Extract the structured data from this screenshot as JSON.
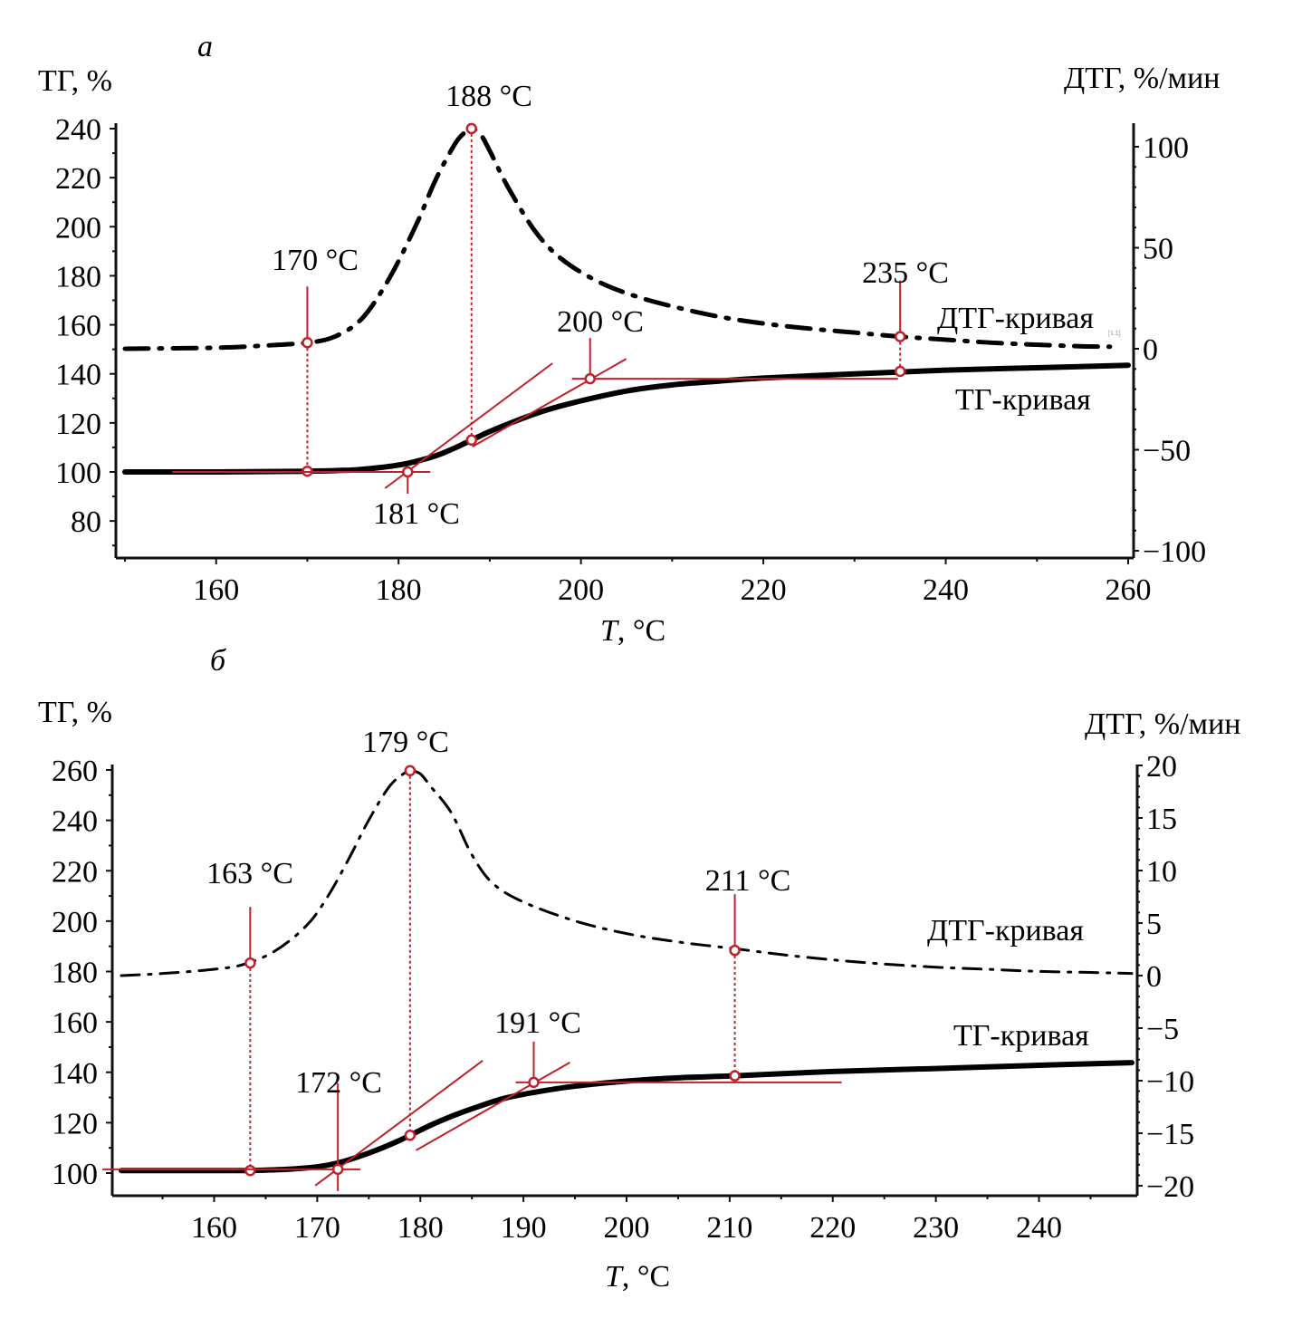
{
  "chart_data": [
    {
      "type": "line",
      "panel_label": "а",
      "ylabel_left": "ТГ, %",
      "ylabel_right": "ДТГ, %/мин",
      "xlabel_italic": "T",
      "xlabel_rest": ", °C",
      "xlim": [
        150,
        260
      ],
      "ylim_left": [
        70,
        242
      ],
      "ylim_right": [
        -100,
        122
      ],
      "xticks": [
        160,
        180,
        200,
        220,
        240,
        260
      ],
      "yticks_left": [
        80,
        100,
        120,
        140,
        160,
        180,
        200,
        220,
        240
      ],
      "yticks_right": [
        -100,
        -50,
        0,
        50,
        100
      ],
      "grid": false,
      "series": [
        {
          "name": "ДТГ-кривая",
          "axis": "right",
          "style": "dash-dot",
          "x": [
            150,
            160,
            165,
            170,
            173,
            176,
            179,
            182,
            184,
            186,
            187,
            188,
            189,
            190,
            192,
            195,
            198,
            202,
            206,
            210,
            215,
            220,
            225,
            230,
            235,
            240,
            245,
            250,
            255,
            258
          ],
          "y": [
            0,
            0.5,
            1.5,
            3,
            6,
            15,
            35,
            62,
            83,
            100,
            106,
            109,
            106,
            98,
            80,
            58,
            44,
            33,
            26,
            21,
            16,
            12.5,
            10,
            8,
            6,
            4.5,
            3,
            2,
            1.2,
            1
          ]
        },
        {
          "name": "ТГ-кривая",
          "axis": "left",
          "style": "solid",
          "x": [
            150,
            160,
            170,
            175,
            178,
            181,
            184,
            186,
            188,
            190,
            193,
            196,
            200,
            205,
            210,
            215,
            220,
            230,
            240,
            250,
            260
          ],
          "y": [
            100,
            100,
            100.3,
            100.8,
            101.8,
            103.5,
            106.5,
            109.5,
            113,
            116.5,
            121,
            125,
            129,
            133,
            135.5,
            137,
            138.3,
            140,
            141.5,
            142.5,
            143.5
          ]
        }
      ],
      "annotations": [
        {
          "label": "170 °C",
          "x": 170,
          "curve": "ДТГ-кривая",
          "y_dtg": 3,
          "tg_y": 100.3,
          "type": "onset"
        },
        {
          "label": "181 °C",
          "x": 181,
          "curve": "ТГ-кривая",
          "y_tg": 100,
          "type": "tangent-intersection"
        },
        {
          "label": "188 °C",
          "x": 188,
          "curve": "ДТГ-кривая",
          "y_dtg": 109,
          "tg_y": 113,
          "type": "peak"
        },
        {
          "label": "200 °C",
          "x": 201,
          "curve": "ТГ-кривая",
          "y_tg": 138,
          "type": "tangent-intersection"
        },
        {
          "label": "235 °C",
          "x": 235,
          "curve": "ДТГ-кривая",
          "y_dtg": 6,
          "tg_y": 141,
          "type": "end"
        }
      ],
      "legend_labels": [
        "ДТГ-кривая",
        "ТГ-кривая"
      ],
      "small_mark": "[1.1]"
    },
    {
      "type": "line",
      "panel_label": "б",
      "ylabel_left": "ТГ, %",
      "ylabel_right": "ДТГ, %/мин",
      "xlabel_italic": "T",
      "xlabel_rest": ", °C",
      "xlim": [
        151,
        249
      ],
      "ylim_left": [
        90,
        265
      ],
      "ylim_right": [
        -20.5,
        20.5
      ],
      "xticks": [
        160,
        170,
        180,
        190,
        200,
        210,
        220,
        230,
        240
      ],
      "yticks_left": [
        100,
        120,
        140,
        160,
        180,
        200,
        220,
        240,
        260
      ],
      "yticks_right": [
        -20,
        -15,
        -10,
        -5,
        0,
        5,
        10,
        15,
        20
      ],
      "grid": false,
      "series": [
        {
          "name": "ДТГ-кривая",
          "axis": "right",
          "style": "dash-dot",
          "x": [
            151,
            155,
            160,
            163,
            166,
            169,
            171,
            173,
            175,
            177,
            178.5,
            179,
            180,
            181,
            183,
            185,
            187,
            190,
            195,
            200,
            205,
            211,
            215,
            220,
            225,
            230,
            235,
            240,
            245,
            249
          ],
          "y": [
            0,
            0.2,
            0.6,
            1.1,
            2.4,
            4.8,
            7.5,
            11,
            14.8,
            18,
            19.3,
            19.5,
            19.2,
            18,
            15.5,
            11.5,
            8.8,
            7,
            5.2,
            4,
            3.2,
            2.5,
            2,
            1.5,
            1.1,
            0.8,
            0.6,
            0.4,
            0.3,
            0.2
          ]
        },
        {
          "name": "ТГ-кривая",
          "axis": "left",
          "style": "solid",
          "x": [
            151,
            160,
            163,
            167,
            170,
            172,
            174,
            176,
            178,
            179,
            181,
            183,
            185,
            188,
            191,
            195,
            200,
            205,
            211,
            220,
            230,
            240,
            249
          ],
          "y": [
            101,
            101,
            101,
            101.5,
            102.5,
            104,
            106.5,
            109.5,
            113,
            115,
            119,
            122.5,
            125.5,
            129.5,
            132,
            134.5,
            136.5,
            137.8,
            138.7,
            140.3,
            141.5,
            142.8,
            143.8
          ]
        }
      ],
      "annotations": [
        {
          "label": "163 °C",
          "x": 163.5,
          "curve": "ДТГ-кривая",
          "y_dtg": 1.2,
          "tg_y": 101,
          "type": "onset"
        },
        {
          "label": "172 °C",
          "x": 172,
          "curve": "ТГ-кривая",
          "y_tg": 101.5,
          "type": "tangent-intersection"
        },
        {
          "label": "179 °C",
          "x": 179,
          "curve": "ДТГ-кривая",
          "y_dtg": 19.5,
          "tg_y": 115,
          "type": "peak"
        },
        {
          "label": "191 °C",
          "x": 191,
          "curve": "ТГ-кривая",
          "y_tg": 136,
          "type": "tangent-intersection"
        },
        {
          "label": "211 °C",
          "x": 210.5,
          "curve": "ДТГ-кривая",
          "y_dtg": 2.4,
          "tg_y": 138.6,
          "type": "end"
        }
      ],
      "legend_labels": [
        "ДТГ-кривая",
        "ТГ-кривая"
      ]
    }
  ],
  "colors": {
    "curve": "#000000",
    "annotation": "#c0202a",
    "axis": "#111111"
  }
}
